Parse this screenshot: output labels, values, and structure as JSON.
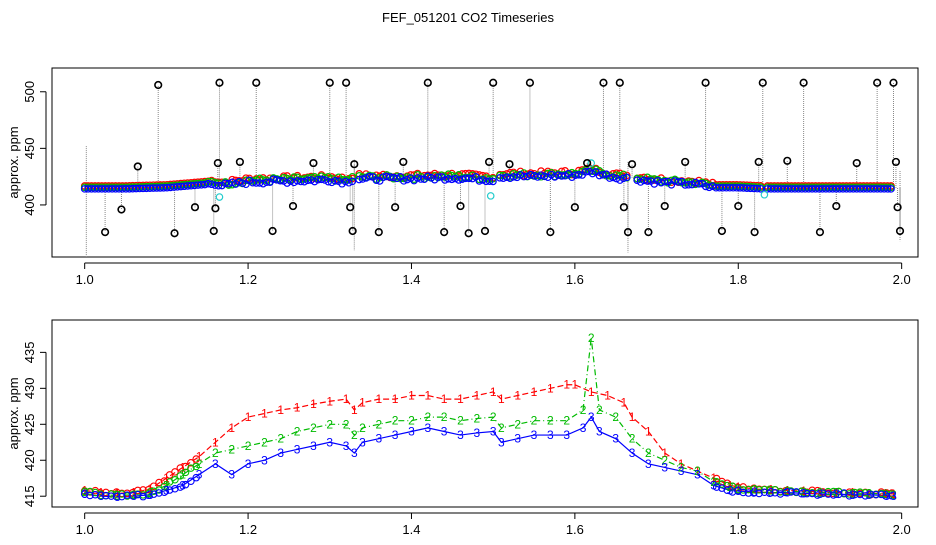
{
  "title": "FEF_051201  CO2 Timeseries",
  "colors": {
    "background": "#ffffff",
    "axis": "#000000",
    "outlier": "#000000",
    "spike_line": "#888888",
    "series1": "#ff0000",
    "series2": "#00bb00",
    "series3": "#0000ff",
    "cyan": "#22cccc"
  },
  "chart_data": [
    {
      "type": "scatter",
      "panel": "top",
      "title": "",
      "xlabel": "",
      "ylabel": "approx. ppm",
      "xlim": [
        0.96,
        2.02
      ],
      "ylim": [
        354,
        521
      ],
      "xticks": [
        1.0,
        1.2,
        1.4,
        1.6,
        1.8,
        2.0
      ],
      "xtick_labels": [
        "1.0",
        "1.2",
        "1.4",
        "1.6",
        "1.8",
        "2.0"
      ],
      "yticks": [
        400,
        450,
        500
      ],
      "ytick_labels": [
        "400",
        "450",
        "500"
      ],
      "baseline": [
        [
          1.0,
          415
        ],
        [
          1.05,
          415
        ],
        [
          1.1,
          416
        ],
        [
          1.15,
          419
        ],
        [
          1.16,
          420
        ],
        [
          1.17,
          418
        ],
        [
          1.2,
          421
        ],
        [
          1.25,
          422
        ],
        [
          1.3,
          423
        ],
        [
          1.32,
          421
        ],
        [
          1.33,
          424
        ],
        [
          1.4,
          424
        ],
        [
          1.45,
          425
        ],
        [
          1.5,
          423
        ],
        [
          1.51,
          426
        ],
        [
          1.55,
          426
        ],
        [
          1.6,
          427
        ],
        [
          1.62,
          430
        ],
        [
          1.65,
          425
        ],
        [
          1.67,
          424
        ],
        [
          1.7,
          421
        ],
        [
          1.75,
          419
        ],
        [
          1.77,
          416
        ],
        [
          1.8,
          416
        ],
        [
          1.83,
          415
        ],
        [
          1.9,
          415
        ],
        [
          1.99,
          415
        ]
      ],
      "gaps": [
        [
          1.33,
          1.335
        ],
        [
          1.5,
          1.505
        ],
        [
          1.665,
          1.675
        ],
        [
          1.83,
          1.835
        ]
      ],
      "outlier_x": [
        1.025,
        1.045,
        1.065,
        1.09,
        1.11,
        1.135,
        1.158,
        1.16,
        1.163,
        1.165,
        1.19,
        1.21,
        1.23,
        1.255,
        1.28,
        1.3,
        1.32,
        1.325,
        1.328,
        1.33,
        1.36,
        1.38,
        1.39,
        1.42,
        1.44,
        1.46,
        1.47,
        1.49,
        1.495,
        1.5,
        1.52,
        1.545,
        1.57,
        1.6,
        1.615,
        1.635,
        1.655,
        1.66,
        1.665,
        1.67,
        1.69,
        1.71,
        1.735,
        1.76,
        1.78,
        1.8,
        1.82,
        1.825,
        1.83,
        1.86,
        1.88,
        1.9,
        1.92,
        1.945,
        1.97,
        1.99,
        1.993,
        1.995,
        1.998
      ],
      "outlier_y": [
        376,
        396,
        434,
        506,
        375,
        398,
        377,
        397,
        437,
        508,
        438,
        508,
        377,
        399,
        437,
        508,
        508,
        398,
        377,
        436,
        376,
        398,
        438,
        508,
        376,
        399,
        375,
        377,
        438,
        508,
        436,
        508,
        376,
        398,
        437,
        508,
        508,
        398,
        376,
        436,
        376,
        399,
        438,
        508,
        377,
        399,
        376,
        438,
        508,
        439,
        508,
        376,
        399,
        437,
        508,
        508,
        438,
        398,
        377
      ],
      "cyan_points": [
        [
          1.165,
          407
        ],
        [
          1.497,
          408
        ],
        [
          1.832,
          409
        ],
        [
          1.62,
          437
        ]
      ]
    },
    {
      "type": "line",
      "panel": "bottom",
      "title": "",
      "xlabel": "",
      "ylabel": "approx. ppm",
      "xlim": [
        0.96,
        2.02
      ],
      "ylim": [
        413.5,
        439.5
      ],
      "xticks": [
        1.0,
        1.2,
        1.4,
        1.6,
        1.8,
        2.0
      ],
      "xtick_labels": [
        "1.0",
        "1.2",
        "1.4",
        "1.6",
        "1.8",
        "2.0"
      ],
      "yticks": [
        415,
        420,
        425,
        430,
        435
      ],
      "ytick_labels": [
        "415",
        "420",
        "425",
        "430",
        "435"
      ],
      "series": [
        {
          "name": "1",
          "marker": "1",
          "color": "#ff0000",
          "style": "dashed",
          "x": [
            1.0,
            1.02,
            1.04,
            1.06,
            1.08,
            1.1,
            1.12,
            1.14,
            1.16,
            1.18,
            1.2,
            1.22,
            1.24,
            1.26,
            1.28,
            1.3,
            1.32,
            1.33,
            1.34,
            1.36,
            1.38,
            1.4,
            1.42,
            1.44,
            1.46,
            1.48,
            1.5,
            1.51,
            1.53,
            1.55,
            1.57,
            1.59,
            1.6,
            1.62,
            1.64,
            1.66,
            1.67,
            1.69,
            1.71,
            1.73,
            1.75,
            1.77,
            1.79,
            1.8,
            1.82,
            1.84,
            1.86,
            1.88,
            1.9,
            1.92,
            1.94,
            1.96,
            1.98,
            1.99
          ],
          "y": [
            415.8,
            415.5,
            415.4,
            415.5,
            416,
            417.5,
            419,
            420.5,
            422.5,
            424.5,
            426,
            426.5,
            427,
            427.3,
            427.8,
            428.2,
            428.5,
            427,
            428,
            428.5,
            428.5,
            429,
            429,
            428.5,
            428.5,
            429,
            429.5,
            428.5,
            429,
            429.5,
            430,
            430.5,
            430.5,
            429.5,
            429,
            428,
            426,
            424,
            421,
            419.5,
            418.5,
            417.5,
            416.5,
            416.3,
            416,
            415.9,
            415.8,
            415.7,
            415.6,
            415.5,
            415.5,
            415.4,
            415.4,
            415.3
          ]
        },
        {
          "name": "2",
          "marker": "2",
          "color": "#00bb00",
          "style": "dashdot",
          "x": [
            1.0,
            1.02,
            1.04,
            1.06,
            1.08,
            1.1,
            1.12,
            1.14,
            1.16,
            1.18,
            1.2,
            1.22,
            1.24,
            1.26,
            1.28,
            1.3,
            1.32,
            1.33,
            1.34,
            1.36,
            1.38,
            1.4,
            1.42,
            1.44,
            1.46,
            1.48,
            1.5,
            1.51,
            1.53,
            1.55,
            1.57,
            1.59,
            1.61,
            1.62,
            1.63,
            1.65,
            1.67,
            1.69,
            1.71,
            1.73,
            1.75,
            1.77,
            1.79,
            1.8,
            1.82,
            1.84,
            1.86,
            1.88,
            1.9,
            1.92,
            1.94,
            1.96,
            1.98,
            1.99
          ],
          "y": [
            415.6,
            415.2,
            415.1,
            415.2,
            415.5,
            416.5,
            418,
            419.5,
            421,
            421.5,
            422,
            422.5,
            423,
            424,
            424.5,
            425,
            425,
            423.5,
            424.5,
            425,
            425.5,
            425.5,
            426,
            426,
            425.5,
            425.8,
            426,
            424.5,
            425,
            425.5,
            425.5,
            425.5,
            427,
            437,
            427,
            426,
            423,
            421,
            420,
            419,
            418.5,
            417,
            416.3,
            416,
            415.9,
            415.8,
            415.7,
            415.6,
            415.5,
            415.5,
            415.4,
            415.4,
            415.3,
            415.2
          ]
        },
        {
          "name": "3",
          "marker": "3",
          "color": "#0000ff",
          "style": "solid",
          "x": [
            1.0,
            1.02,
            1.04,
            1.06,
            1.08,
            1.1,
            1.12,
            1.14,
            1.16,
            1.18,
            1.2,
            1.22,
            1.24,
            1.26,
            1.28,
            1.3,
            1.32,
            1.33,
            1.34,
            1.36,
            1.38,
            1.4,
            1.42,
            1.44,
            1.46,
            1.48,
            1.5,
            1.51,
            1.53,
            1.55,
            1.57,
            1.59,
            1.61,
            1.62,
            1.63,
            1.65,
            1.67,
            1.69,
            1.71,
            1.73,
            1.75,
            1.77,
            1.79,
            1.8,
            1.82,
            1.84,
            1.86,
            1.88,
            1.9,
            1.92,
            1.94,
            1.96,
            1.98,
            1.99
          ],
          "y": [
            415.3,
            415,
            414.9,
            415,
            415.2,
            415.8,
            416.5,
            418,
            419.5,
            418,
            419.5,
            420,
            421,
            421.5,
            422,
            422.5,
            422,
            421,
            422.5,
            423,
            423.5,
            424,
            424.5,
            424,
            423.5,
            423.8,
            424,
            422.5,
            423,
            423.5,
            423.5,
            423.5,
            424.5,
            426,
            424,
            423,
            421,
            419.5,
            419,
            418.5,
            418,
            416.5,
            415.8,
            415.7,
            415.6,
            415.5,
            415.5,
            415.4,
            415.3,
            415.3,
            415.2,
            415.2,
            415.1,
            415
          ]
        }
      ]
    }
  ]
}
